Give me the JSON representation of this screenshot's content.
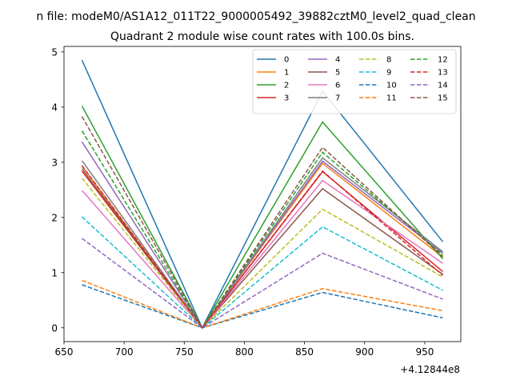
{
  "chart_data": {
    "type": "line",
    "title": "Quadrant 2 module wise count rates with 100.0s bins.",
    "suptitle": "n file: modeM0/AS1A12_011T22_9000005492_39882cztM0_level2_quad_clean",
    "xlabel": "",
    "ylabel": "",
    "x_offset_label": "+4.12844e8",
    "x": [
      665,
      765,
      865,
      965
    ],
    "xlim": [
      650,
      980
    ],
    "ylim": [
      -0.25,
      5.1
    ],
    "xticks": [
      650,
      700,
      750,
      800,
      850,
      900,
      950
    ],
    "yticks": [
      0,
      1,
      2,
      3,
      4,
      5
    ],
    "grid": false,
    "legend_position": "top-right",
    "legend_columns": 4,
    "series": [
      {
        "name": "0",
        "values": [
          4.85,
          0,
          4.29,
          1.56
        ],
        "color": "#1f77b4",
        "dash": "solid"
      },
      {
        "name": "1",
        "values": [
          2.93,
          0,
          2.98,
          1.28
        ],
        "color": "#ff7f0e",
        "dash": "solid"
      },
      {
        "name": "2",
        "values": [
          4.02,
          0,
          3.73,
          1.25
        ],
        "color": "#2ca02c",
        "dash": "solid"
      },
      {
        "name": "3",
        "values": [
          2.84,
          0,
          2.83,
          1.02
        ],
        "color": "#d62728",
        "dash": "solid"
      },
      {
        "name": "4",
        "values": [
          3.37,
          0,
          3.02,
          1.35
        ],
        "color": "#9467bd",
        "dash": "solid"
      },
      {
        "name": "5",
        "values": [
          2.88,
          0,
          2.52,
          0.97
        ],
        "color": "#8c564b",
        "dash": "solid"
      },
      {
        "name": "6",
        "values": [
          2.49,
          0,
          2.67,
          1.17
        ],
        "color": "#e377c2",
        "dash": "solid"
      },
      {
        "name": "7",
        "values": [
          3.03,
          0,
          3.08,
          1.38
        ],
        "color": "#7f7f7f",
        "dash": "solid"
      },
      {
        "name": "8",
        "values": [
          2.71,
          0,
          2.15,
          0.92
        ],
        "color": "#bcbd22",
        "dash": "dashed"
      },
      {
        "name": "9",
        "values": [
          2.01,
          0,
          1.83,
          0.68
        ],
        "color": "#17becf",
        "dash": "dashed"
      },
      {
        "name": "10",
        "values": [
          0.78,
          0,
          0.64,
          0.18
        ],
        "color": "#1f77b4",
        "dash": "dashed"
      },
      {
        "name": "11",
        "values": [
          0.86,
          0,
          0.71,
          0.31
        ],
        "color": "#ff7f0e",
        "dash": "dashed"
      },
      {
        "name": "12",
        "values": [
          3.57,
          0,
          3.18,
          1.32
        ],
        "color": "#2ca02c",
        "dash": "dashed"
      },
      {
        "name": "13",
        "values": [
          2.94,
          0,
          2.84,
          0.95
        ],
        "color": "#d62728",
        "dash": "dashed"
      },
      {
        "name": "14",
        "values": [
          1.62,
          0,
          1.35,
          0.52
        ],
        "color": "#9467bd",
        "dash": "dashed"
      },
      {
        "name": "15",
        "values": [
          3.83,
          0,
          3.27,
          1.29
        ],
        "color": "#8c564b",
        "dash": "dashed"
      }
    ]
  }
}
